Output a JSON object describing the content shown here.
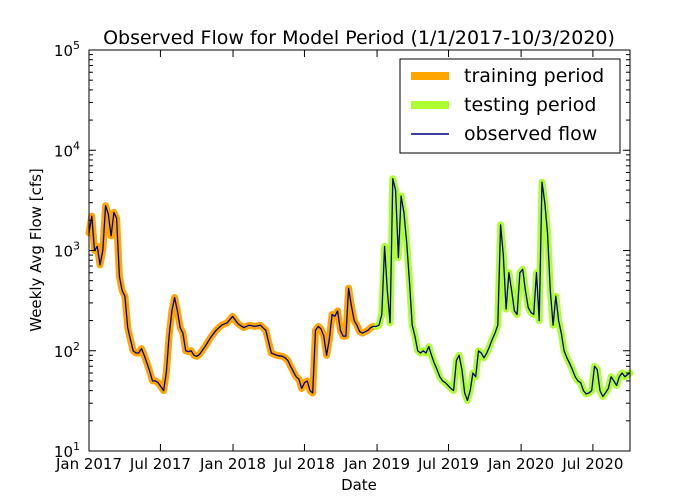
{
  "chart_data": {
    "type": "line",
    "title": "Observed Flow for Model Period (1/1/2017-10/3/2020)",
    "xlabel": "Date",
    "ylabel": "Weekly Avg Flow [cfs]",
    "y_scale": "log",
    "ylim": [
      10,
      100000
    ],
    "xlim": [
      "2017-01-01",
      "2020-10-03"
    ],
    "x_ticks": [
      {
        "date": "2017-01-01",
        "label": "Jan 2017"
      },
      {
        "date": "2017-07-01",
        "label": "Jul 2017"
      },
      {
        "date": "2018-01-01",
        "label": "Jan 2018"
      },
      {
        "date": "2018-07-01",
        "label": "Jul 2018"
      },
      {
        "date": "2019-01-01",
        "label": "Jan 2019"
      },
      {
        "date": "2019-07-01",
        "label": "Jul 2019"
      },
      {
        "date": "2020-01-01",
        "label": "Jan 2020"
      },
      {
        "date": "2020-07-01",
        "label": "Jul 2020"
      }
    ],
    "y_ticks": [
      {
        "value": 10,
        "base": "10",
        "exp": "1"
      },
      {
        "value": 100,
        "base": "10",
        "exp": "2"
      },
      {
        "value": 1000,
        "base": "10",
        "exp": "3"
      },
      {
        "value": 10000,
        "base": "10",
        "exp": "4"
      },
      {
        "value": 100000,
        "base": "10",
        "exp": "5"
      }
    ],
    "legend_position": "top-right",
    "series": [
      {
        "name": "training period",
        "color": "#FFA500",
        "style": "thick",
        "x": [
          "2017-01-01",
          "2017-01-08",
          "2017-01-15",
          "2017-01-22",
          "2017-01-29",
          "2017-02-05",
          "2017-02-12",
          "2017-02-19",
          "2017-02-26",
          "2017-03-05",
          "2017-03-12",
          "2017-03-19",
          "2017-03-26",
          "2017-04-02",
          "2017-04-09",
          "2017-04-16",
          "2017-04-23",
          "2017-04-30",
          "2017-05-07",
          "2017-05-14",
          "2017-05-21",
          "2017-05-28",
          "2017-06-04",
          "2017-06-11",
          "2017-06-18",
          "2017-06-25",
          "2017-07-02",
          "2017-07-09",
          "2017-07-16",
          "2017-07-23",
          "2017-07-30",
          "2017-08-06",
          "2017-08-13",
          "2017-08-20",
          "2017-08-27",
          "2017-09-03",
          "2017-09-10",
          "2017-09-17",
          "2017-09-24",
          "2017-10-01",
          "2017-10-08",
          "2017-10-22",
          "2017-11-05",
          "2017-11-19",
          "2017-12-03",
          "2017-12-17",
          "2017-12-31",
          "2018-01-14",
          "2018-01-28",
          "2018-02-11",
          "2018-02-25",
          "2018-03-11",
          "2018-03-25",
          "2018-04-08",
          "2018-04-22",
          "2018-05-06",
          "2018-05-13",
          "2018-05-20",
          "2018-05-27",
          "2018-06-03",
          "2018-06-10",
          "2018-06-17",
          "2018-06-24",
          "2018-07-01",
          "2018-07-08",
          "2018-07-15",
          "2018-07-22",
          "2018-07-29",
          "2018-08-05",
          "2018-08-12",
          "2018-08-19",
          "2018-08-26",
          "2018-09-02",
          "2018-09-09",
          "2018-09-16",
          "2018-09-23",
          "2018-09-30",
          "2018-10-07",
          "2018-10-14",
          "2018-10-21",
          "2018-10-28",
          "2018-11-04",
          "2018-11-11",
          "2018-11-18",
          "2018-11-25",
          "2018-12-02",
          "2018-12-09",
          "2018-12-16",
          "2018-12-23",
          "2018-12-30"
        ],
        "y": [
          1500,
          2200,
          1000,
          1100,
          720,
          1000,
          2800,
          2300,
          1400,
          2400,
          2100,
          550,
          400,
          350,
          170,
          130,
          100,
          95,
          95,
          105,
          90,
          75,
          62,
          50,
          50,
          48,
          44,
          40,
          60,
          140,
          250,
          340,
          250,
          170,
          150,
          100,
          98,
          100,
          90,
          88,
          92,
          110,
          135,
          160,
          180,
          190,
          220,
          185,
          170,
          180,
          175,
          180,
          160,
          95,
          90,
          88,
          85,
          80,
          70,
          62,
          55,
          52,
          42,
          48,
          50,
          40,
          38,
          160,
          175,
          165,
          140,
          90,
          130,
          230,
          220,
          250,
          160,
          140,
          140,
          420,
          280,
          200,
          180,
          155,
          150,
          155,
          160,
          170,
          175,
          175
        ]
      },
      {
        "name": "testing period",
        "color": "#ADFF2F",
        "style": "thick",
        "x": [
          "2018-12-30",
          "2019-01-06",
          "2019-01-13",
          "2019-01-20",
          "2019-01-27",
          "2019-02-03",
          "2019-02-10",
          "2019-02-17",
          "2019-02-24",
          "2019-03-03",
          "2019-03-10",
          "2019-03-17",
          "2019-03-24",
          "2019-03-31",
          "2019-04-07",
          "2019-04-14",
          "2019-04-21",
          "2019-04-28",
          "2019-05-05",
          "2019-05-12",
          "2019-05-19",
          "2019-05-26",
          "2019-06-02",
          "2019-06-09",
          "2019-06-16",
          "2019-06-23",
          "2019-06-30",
          "2019-07-07",
          "2019-07-14",
          "2019-07-21",
          "2019-07-28",
          "2019-08-04",
          "2019-08-11",
          "2019-08-18",
          "2019-08-25",
          "2019-09-01",
          "2019-09-08",
          "2019-09-15",
          "2019-09-22",
          "2019-09-29",
          "2019-10-06",
          "2019-10-13",
          "2019-10-20",
          "2019-10-27",
          "2019-11-03",
          "2019-11-10",
          "2019-11-17",
          "2019-11-24",
          "2019-12-01",
          "2019-12-08",
          "2019-12-15",
          "2019-12-22",
          "2019-12-29",
          "2020-01-05",
          "2020-01-12",
          "2020-01-19",
          "2020-01-26",
          "2020-02-02",
          "2020-02-09",
          "2020-02-16",
          "2020-02-23",
          "2020-03-01",
          "2020-03-08",
          "2020-03-15",
          "2020-03-22",
          "2020-03-29",
          "2020-04-05",
          "2020-04-12",
          "2020-04-19",
          "2020-04-26",
          "2020-05-03",
          "2020-05-10",
          "2020-05-17",
          "2020-05-24",
          "2020-05-31",
          "2020-06-07",
          "2020-06-14",
          "2020-06-21",
          "2020-06-28",
          "2020-07-05",
          "2020-07-12",
          "2020-07-19",
          "2020-07-26",
          "2020-08-02",
          "2020-08-09",
          "2020-08-16",
          "2020-08-23",
          "2020-08-30",
          "2020-09-06",
          "2020-09-13",
          "2020-09-20",
          "2020-09-27",
          "2020-10-03"
        ],
        "y": [
          175,
          180,
          230,
          1100,
          400,
          190,
          5200,
          4000,
          850,
          3500,
          2400,
          1200,
          500,
          180,
          140,
          100,
          95,
          100,
          95,
          110,
          90,
          75,
          65,
          55,
          50,
          48,
          45,
          42,
          40,
          80,
          90,
          65,
          38,
          32,
          40,
          60,
          55,
          100,
          95,
          85,
          95,
          110,
          130,
          150,
          180,
          1800,
          900,
          260,
          600,
          400,
          250,
          230,
          600,
          650,
          400,
          270,
          240,
          230,
          600,
          200,
          4800,
          3000,
          1500,
          400,
          180,
          350,
          200,
          150,
          100,
          85,
          75,
          65,
          55,
          50,
          48,
          40,
          37,
          38,
          40,
          70,
          65,
          40,
          35,
          38,
          42,
          55,
          50,
          45,
          55,
          60,
          55,
          58,
          60
        ]
      },
      {
        "name": "observed flow",
        "color": "#00008B",
        "style": "thin",
        "source": "combined"
      }
    ]
  }
}
